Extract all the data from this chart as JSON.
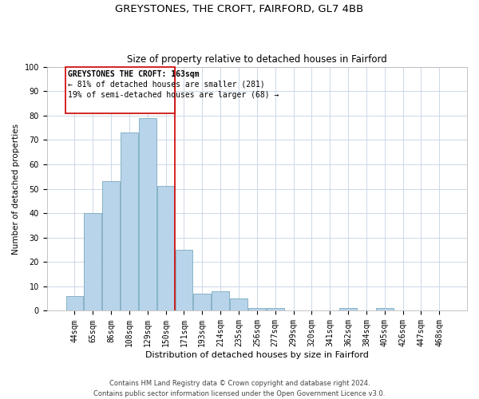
{
  "title": "GREYSTONES, THE CROFT, FAIRFORD, GL7 4BB",
  "subtitle": "Size of property relative to detached houses in Fairford",
  "xlabel": "Distribution of detached houses by size in Fairford",
  "ylabel": "Number of detached properties",
  "bar_labels": [
    "44sqm",
    "65sqm",
    "86sqm",
    "108sqm",
    "129sqm",
    "150sqm",
    "171sqm",
    "193sqm",
    "214sqm",
    "235sqm",
    "256sqm",
    "277sqm",
    "299sqm",
    "320sqm",
    "341sqm",
    "362sqm",
    "384sqm",
    "405sqm",
    "426sqm",
    "447sqm",
    "468sqm"
  ],
  "bar_values": [
    6,
    40,
    53,
    73,
    79,
    51,
    25,
    7,
    8,
    5,
    1,
    1,
    0,
    0,
    0,
    1,
    0,
    1,
    0,
    0,
    0
  ],
  "bar_color": "#b8d4ea",
  "bar_edge_color": "#7aaabf",
  "vline_x": 5.5,
  "vline_color": "#cc0000",
  "annotation_line1": "GREYSTONES THE CROFT: 163sqm",
  "annotation_line2": "← 81% of detached houses are smaller (281)",
  "annotation_line3": "19% of semi-detached houses are larger (68) →",
  "annotation_box_color": "#ffffff",
  "annotation_box_edge": "#cc0000",
  "ylim": [
    0,
    100
  ],
  "yticks": [
    0,
    10,
    20,
    30,
    40,
    50,
    60,
    70,
    80,
    90,
    100
  ],
  "footer_line1": "Contains HM Land Registry data © Crown copyright and database right 2024.",
  "footer_line2": "Contains public sector information licensed under the Open Government Licence v3.0.",
  "background_color": "#ffffff",
  "grid_color": "#ccd8e8",
  "title_fontsize": 9.5,
  "subtitle_fontsize": 8.5,
  "xlabel_fontsize": 8,
  "ylabel_fontsize": 7.5,
  "tick_fontsize": 7,
  "annotation_fontsize": 7,
  "footer_fontsize": 6
}
